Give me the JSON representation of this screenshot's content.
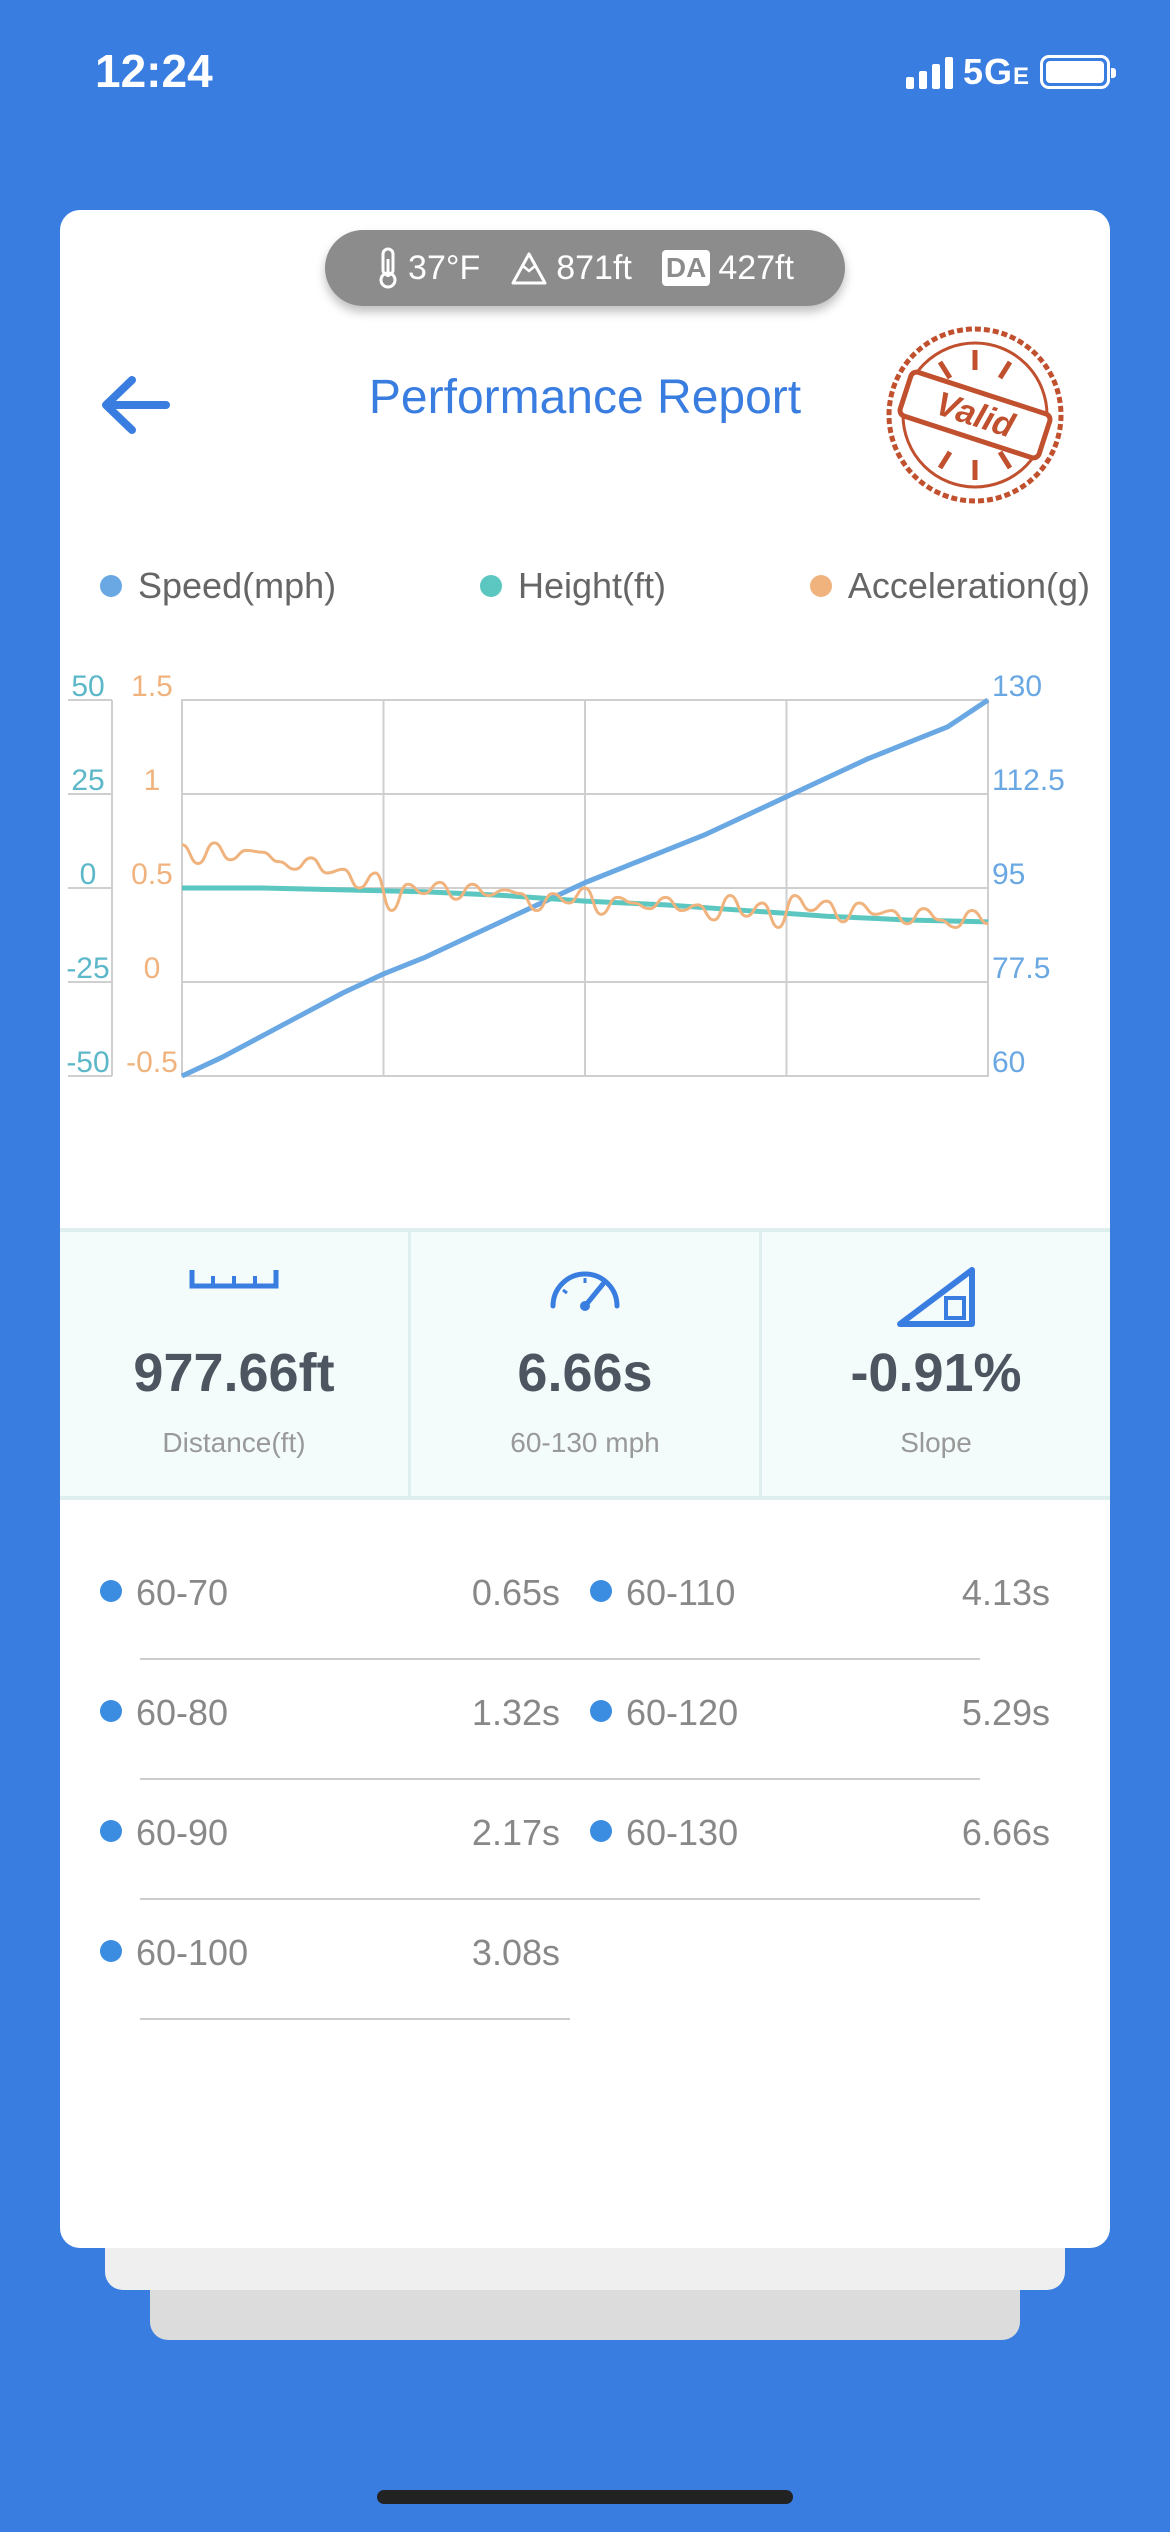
{
  "status": {
    "time": "12:24",
    "network": "5G",
    "network_sub": "E"
  },
  "env": {
    "temp": "37°F",
    "altitude": "871ft",
    "da_label": "DA",
    "density_altitude": "427ft"
  },
  "header": {
    "title": "Performance Report",
    "stamp_text": "Valid"
  },
  "legend": [
    {
      "label": "Speed(mph)",
      "color": "#6aa8e4"
    },
    {
      "label": "Height(ft)",
      "color": "#5cc6c0"
    },
    {
      "label": "Acceleration(g)",
      "color": "#f0b37e"
    }
  ],
  "chart_data": {
    "type": "line",
    "height_axis": {
      "ticks": [
        "50",
        "25",
        "0",
        "-25",
        "-50"
      ],
      "range": [
        -50,
        50
      ],
      "color": "#5cb8c8"
    },
    "accel_axis": {
      "ticks": [
        "1.5",
        "1",
        "0.5",
        "0",
        "-0.5"
      ],
      "range": [
        -0.5,
        1.5
      ],
      "color": "#f0b37e"
    },
    "speed_axis": {
      "ticks": [
        "130",
        "112.5",
        "95",
        "77.5",
        "60"
      ],
      "range": [
        60,
        130
      ],
      "color": "#6aa8e4"
    },
    "series": [
      {
        "name": "Speed(mph)",
        "axis": "speed",
        "color": "#6aa8e4",
        "t": [
          0,
          0.05,
          0.1,
          0.15,
          0.2,
          0.25,
          0.3,
          0.35,
          0.4,
          0.45,
          0.5,
          0.55,
          0.6,
          0.65,
          0.7,
          0.75,
          0.8,
          0.85,
          0.9,
          0.95,
          1.0
        ],
        "values": [
          60,
          63.5,
          67.5,
          71.5,
          75.5,
          79,
          82,
          85.5,
          89,
          92.5,
          96,
          99,
          102,
          105,
          108.5,
          112,
          115.5,
          119,
          122,
          125,
          130
        ]
      },
      {
        "name": "Height(ft)",
        "axis": "height",
        "color": "#5cc6c0",
        "t": [
          0,
          0.1,
          0.2,
          0.3,
          0.4,
          0.5,
          0.6,
          0.7,
          0.8,
          0.9,
          1.0
        ],
        "values": [
          0,
          0,
          -0.5,
          -1,
          -2,
          -3.5,
          -4.5,
          -6,
          -7.5,
          -8.5,
          -9
        ]
      },
      {
        "name": "Acceleration(g)",
        "axis": "accel",
        "color": "#f0b37e",
        "t": [
          0,
          0.02,
          0.04,
          0.06,
          0.08,
          0.1,
          0.12,
          0.14,
          0.16,
          0.18,
          0.2,
          0.22,
          0.24,
          0.26,
          0.28,
          0.3,
          0.32,
          0.34,
          0.36,
          0.38,
          0.4,
          0.42,
          0.44,
          0.46,
          0.48,
          0.5,
          0.52,
          0.54,
          0.56,
          0.58,
          0.6,
          0.62,
          0.64,
          0.66,
          0.68,
          0.7,
          0.72,
          0.74,
          0.76,
          0.78,
          0.8,
          0.82,
          0.84,
          0.86,
          0.88,
          0.9,
          0.92,
          0.94,
          0.96,
          0.98,
          1.0
        ],
        "values": [
          0.73,
          0.63,
          0.74,
          0.65,
          0.7,
          0.69,
          0.64,
          0.6,
          0.66,
          0.58,
          0.6,
          0.5,
          0.58,
          0.38,
          0.52,
          0.47,
          0.53,
          0.44,
          0.52,
          0.46,
          0.49,
          0.47,
          0.38,
          0.47,
          0.42,
          0.5,
          0.36,
          0.45,
          0.42,
          0.39,
          0.45,
          0.38,
          0.41,
          0.33,
          0.46,
          0.35,
          0.42,
          0.29,
          0.46,
          0.38,
          0.43,
          0.32,
          0.42,
          0.36,
          0.38,
          0.31,
          0.39,
          0.33,
          0.29,
          0.38,
          0.31
        ]
      }
    ],
    "grid": true
  },
  "stats": [
    {
      "value": "977.66ft",
      "label": "Distance(ft)",
      "icon": "ruler-icon"
    },
    {
      "value": "6.66s",
      "label": "60-130 mph",
      "icon": "speedometer-icon"
    },
    {
      "value": "-0.91%",
      "label": "Slope",
      "icon": "slope-icon"
    }
  ],
  "splits": [
    {
      "range": "60-70",
      "time": "0.65s"
    },
    {
      "range": "60-80",
      "time": "1.32s"
    },
    {
      "range": "60-90",
      "time": "2.17s"
    },
    {
      "range": "60-100",
      "time": "3.08s"
    },
    {
      "range": "60-110",
      "time": "4.13s"
    },
    {
      "range": "60-120",
      "time": "5.29s"
    },
    {
      "range": "60-130",
      "time": "6.66s"
    }
  ]
}
